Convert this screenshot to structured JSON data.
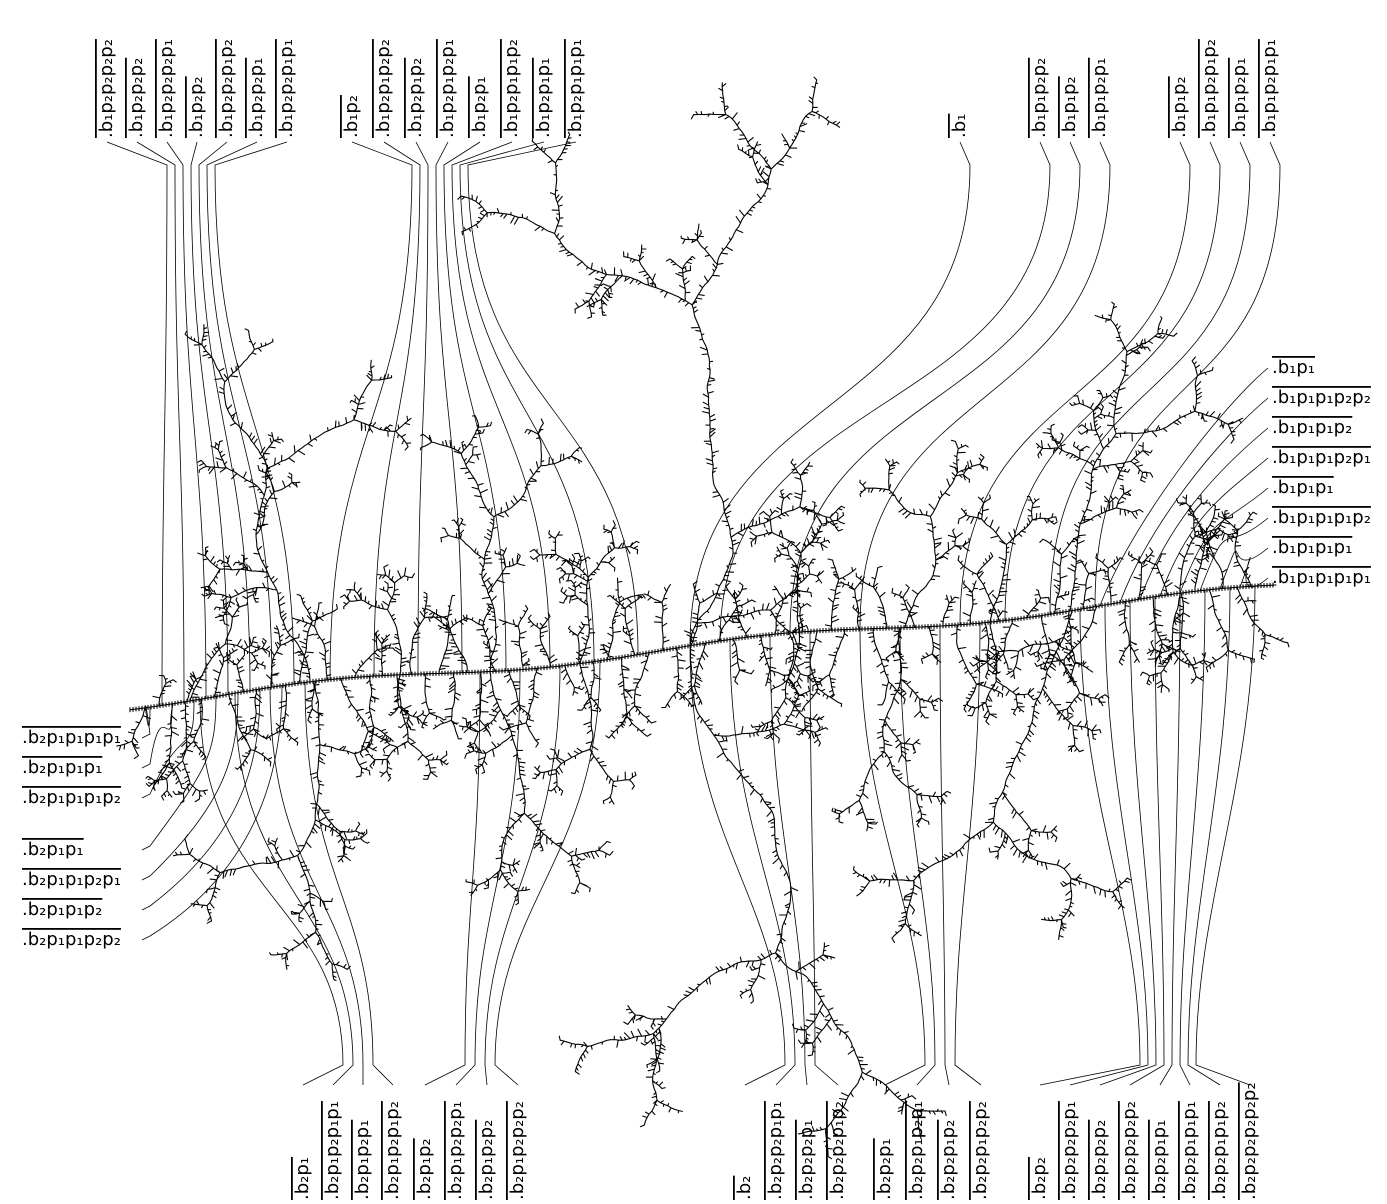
{
  "top_groups": [
    {
      "labels": [
        ".b₁p₂p₂p₂p₂",
        ".b₁p₂p₂p₂",
        ".b₁p₂p₂p₂p₁",
        ".b₁p₂p₂",
        ".b₁p₂p₂p₁p₂",
        ".b₁p₂p₂p₁",
        ".b₁p₂p₂p₁p₁"
      ]
    },
    {
      "labels": [
        ".b₁p₂",
        ".b₁p₂p₁p₂p₂",
        ".b₁p₂p₁p₂",
        ".b₁p₂p₁p₂p₁",
        ".b₁p₂p₁",
        ".b₁p₂p₁p₁p₂",
        ".b₁p₂p₁p₁",
        ".b₁p₂p₁p₁p₁"
      ]
    },
    {
      "labels": [
        ".b₁"
      ]
    },
    {
      "labels": [
        ".b₁p₁p₂p₂",
        ".b₁p₁p₂",
        ".b₁p₁p₂p₁"
      ]
    },
    {
      "labels": [
        ".b₁p₁p₂",
        ".b₁p₁p₂p₁p₂",
        ".b₁p₁p₂p₁",
        ".b₁p₁p₂p₁p₁"
      ]
    }
  ],
  "right_labels": [
    ".b₁p₁",
    ".b₁p₁p₁p₂p₂",
    ".b₁p₁p₁p₂",
    ".b₁p₁p₁p₂p₁",
    ".b₁p₁p₁",
    ".b₁p₁p₁p₁p₂",
    ".b₁p₁p₁p₁",
    ".b₁p₁p₁p₁p₁"
  ],
  "left_labels": [
    ".b₂p₁p₁p₁p₁",
    ".b₂p₁p₁p₁",
    ".b₂p₁p₁p₁p₂",
    ".b₂p₁p₁",
    ".b₂p₁p₁p₂p₁",
    ".b₂p₁p₁p₂",
    ".b₂p₁p₁p₂p₂"
  ],
  "bottom_groups": [
    {
      "labels": [
        ".b₂p₁",
        ".b₂p₁p₂p₁p₁",
        ".b₂p₁p₂p₁",
        ".b₂p₁p₂p₁p₂"
      ]
    },
    {
      "labels": [
        ".b₂p₁p₂",
        ".b₂p₁p₂p₂p₁",
        ".b₂p₁p₂p₂",
        ".b₂p₁p₂p₂p₂"
      ]
    },
    {
      "labels": [
        ".b₂",
        ".b₂p₂p₂p₁p₁",
        ".b₂p₂p₂p₁",
        ".b₂p₂p₂p₁p₂"
      ]
    },
    {
      "labels": [
        ".b₂p₂p₁",
        ".b₂p₂p₁p₂p₁",
        ".b₂p₂p₁p₂",
        ".b₂p₂p₁p₂p₂"
      ]
    },
    {
      "labels": [
        ".b₂p₂",
        ".b₂p₂p₂p₂p₁",
        ".b₂p₂p₂p₂",
        ".b₂p₂p₂p₂p₂",
        ".b₂p₂p₁p₁",
        ".b₂p₂p₁p₁p₁",
        ".b₂p₂p₁p₁p₂",
        ".b₂p₂p₂p₂p₂p₂"
      ]
    }
  ]
}
